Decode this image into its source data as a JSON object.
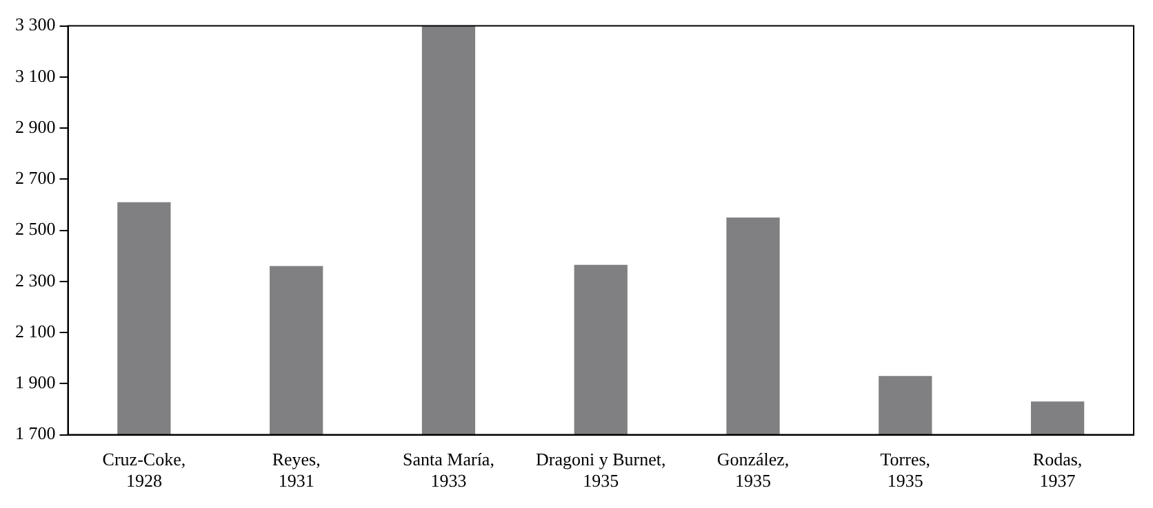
{
  "chart_data": {
    "type": "bar",
    "categories": [
      "Cruz-Coke,\n1928",
      "Reyes,\n1931",
      "Santa María,\n1933",
      "Dragoni y Burnet,\n1935",
      "González,\n1935",
      "Torres,\n1935",
      "Rodas,\n1937"
    ],
    "values": [
      2610,
      2360,
      3300,
      2365,
      2550,
      1930,
      1830
    ],
    "color": "#808083",
    "ylim": [
      1700,
      3300
    ],
    "yticks": [
      {
        "value": 1700,
        "label": "1 700"
      },
      {
        "value": 1900,
        "label": "1 900"
      },
      {
        "value": 2100,
        "label": "2 100"
      },
      {
        "value": 2300,
        "label": "2 300"
      },
      {
        "value": 2500,
        "label": "2 500"
      },
      {
        "value": 2700,
        "label": "2 700"
      },
      {
        "value": 2900,
        "label": "2 900"
      },
      {
        "value": 3100,
        "label": "3 100"
      },
      {
        "value": 3300,
        "label": "3 300"
      }
    ],
    "grid": false,
    "legend": false
  }
}
